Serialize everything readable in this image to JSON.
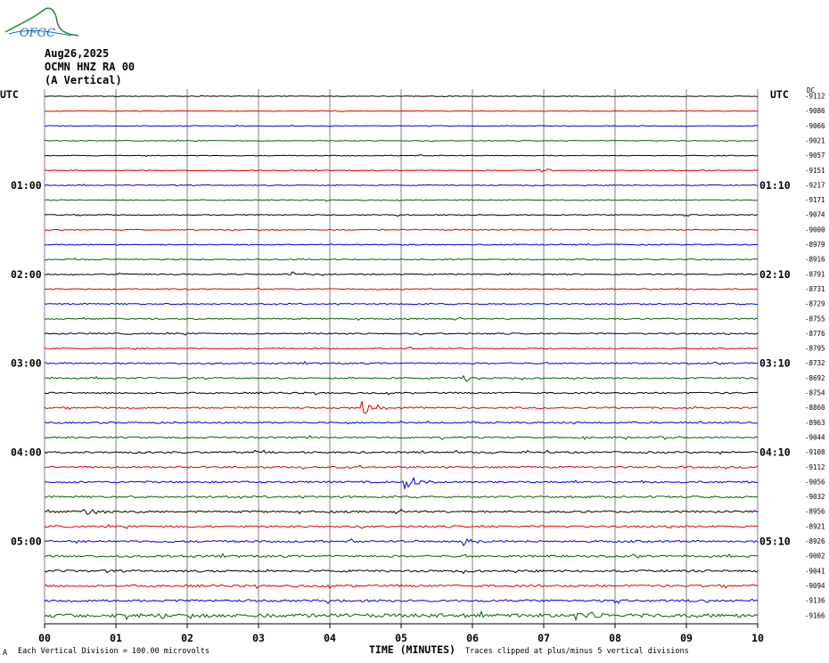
{
  "logo": {
    "text": "OFGC"
  },
  "header": {
    "date": "Aug26,2025",
    "station": "OCMN HNZ RA 00",
    "component": "(A Vertical)"
  },
  "labels": {
    "utc_left": "UTC",
    "utc_right": "UTC",
    "dc": "DC"
  },
  "footer": {
    "scale": "Each Vertical Division =  100.00 microvolts",
    "xtitle": "TIME (MINUTES)",
    "clip": "Traces clipped at plus/minus 5 vertical divisions",
    "corner": "A"
  },
  "chart_data": {
    "type": "line",
    "title": "",
    "xlabel": "TIME (MINUTES)",
    "xlim": [
      0,
      10
    ],
    "x_ticks": [
      "00",
      "01",
      "02",
      "03",
      "04",
      "05",
      "06",
      "07",
      "08",
      "09",
      "10"
    ],
    "left_time_labels": [
      {
        "row": 6,
        "label": "01:00"
      },
      {
        "row": 12,
        "label": "02:00"
      },
      {
        "row": 18,
        "label": "03:00"
      },
      {
        "row": 24,
        "label": "04:00"
      },
      {
        "row": 30,
        "label": "05:00"
      }
    ],
    "right_time_labels": [
      {
        "row": 6,
        "label": "01:10"
      },
      {
        "row": 12,
        "label": "02:10"
      },
      {
        "row": 18,
        "label": "03:10"
      },
      {
        "row": 24,
        "label": "04:10"
      },
      {
        "row": 30,
        "label": "05:10"
      }
    ],
    "trace_colors": [
      "#000000",
      "#e00000",
      "#0000e0",
      "#006400"
    ],
    "dc_offsets": [
      "-9112",
      "-9086",
      "-9066",
      "-9021",
      "-9057",
      "-9151",
      "-9217",
      "-9171",
      "-9074",
      "-9000",
      "-8979",
      "-8916",
      "-8791",
      "-8731",
      "-8729",
      "-8755",
      "-8776",
      "-8795",
      "-8732",
      "-8692",
      "-8754",
      "-8860",
      "-8963",
      "-9044",
      "-9108",
      "-9112",
      "-9056",
      "-9032",
      "-8956",
      "-8921",
      "-8926",
      "-9002",
      "-9041",
      "-9094",
      "-9136",
      "-9166"
    ],
    "events": [
      {
        "row": 21,
        "minute": 4.5,
        "amplitude": "high"
      },
      {
        "row": 26,
        "minute": 5.1,
        "amplitude": "high"
      },
      {
        "row": 19,
        "minute": 5.9,
        "amplitude": "medium"
      },
      {
        "row": 30,
        "minute": 5.9,
        "amplitude": "medium"
      },
      {
        "row": 28,
        "minute": 0.6,
        "amplitude": "medium"
      },
      {
        "row": 12,
        "minute": 3.5,
        "amplitude": "low"
      },
      {
        "row": 5,
        "minute": 6.95,
        "amplitude": "low"
      },
      {
        "row": 35,
        "minute": 7.5,
        "amplitude": "medium"
      }
    ]
  }
}
